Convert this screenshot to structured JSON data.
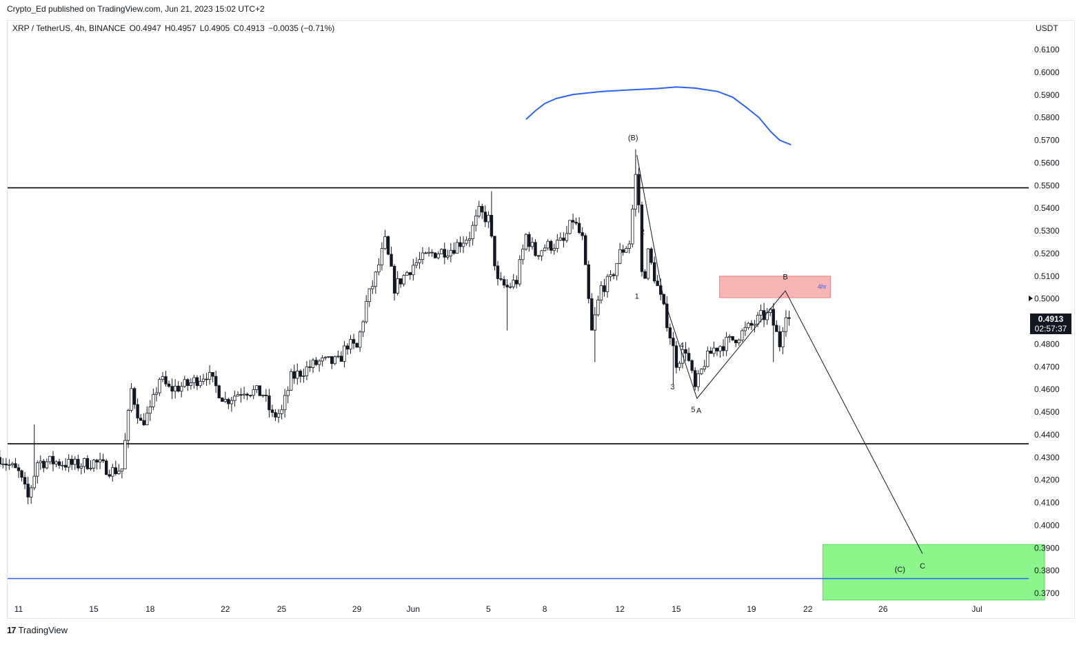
{
  "header": {
    "published_text": "Crypto_Ed published on TradingView.com, Jun 21, 2023 15:02 UTC+2"
  },
  "legend": {
    "symbol": "XRP / TetherUS, 4h, BINANCE",
    "open": "O0.4947",
    "high": "H0.4957",
    "low": "L0.4905",
    "close": "C0.4913",
    "change": "−0.0035 (−0.71%)"
  },
  "footer": {
    "brand": "TradingView",
    "logo_icon": "tradingview-logo-icon"
  },
  "price_badge": {
    "price": "0.4913",
    "countdown": "02:57:37"
  },
  "chart_data": {
    "type": "candlestick",
    "symbol": "XRP / TetherUS",
    "timeframe": "4h",
    "y_axis_unit": "USDT",
    "ylim": [
      0.366,
      0.619
    ],
    "y_ticks": [
      "0.6100",
      "0.6000",
      "0.5900",
      "0.5800",
      "0.5700",
      "0.5600",
      "0.5500",
      "0.5400",
      "0.5300",
      "0.5200",
      "0.5100",
      "0.5000",
      "0.4900",
      "0.4800",
      "0.4700",
      "0.4600",
      "0.4500",
      "0.4400",
      "0.4300",
      "0.4200",
      "0.4100",
      "0.4000",
      "0.3900",
      "0.3800",
      "0.3700"
    ],
    "x_ticks": [
      {
        "label": "11",
        "day": 11
      },
      {
        "label": "15",
        "day": 15
      },
      {
        "label": "18",
        "day": 18
      },
      {
        "label": "22",
        "day": 22
      },
      {
        "label": "25",
        "day": 25
      },
      {
        "label": "29",
        "day": 29
      },
      {
        "label": "Jun",
        "day": 32
      },
      {
        "label": "5",
        "day": 36
      },
      {
        "label": "8",
        "day": 39
      },
      {
        "label": "12",
        "day": 43
      },
      {
        "label": "15",
        "day": 46
      },
      {
        "label": "19",
        "day": 50
      },
      {
        "label": "22",
        "day": 53
      },
      {
        "label": "26",
        "day": 57
      },
      {
        "label": "Jul",
        "day": 62
      }
    ],
    "colors": {
      "candle": "#131722",
      "blue_line": "#2962ff",
      "level_line": "#000000",
      "red_zone": "#f7b5b5",
      "green_zone": "#8cf58c"
    },
    "horizontal_levels": [
      {
        "price": 0.549,
        "color": "#000000"
      },
      {
        "price": 0.436,
        "color": "#000000"
      },
      {
        "price": 0.3765,
        "color": "#2962ff"
      }
    ],
    "zones": [
      {
        "from_day": 48.3,
        "to_day": 54.2,
        "top": 0.51,
        "bottom": 0.5005,
        "color": "#f7b5b5",
        "label": "4hr"
      },
      {
        "from_day": 53.8,
        "to_day": 65.6,
        "top": 0.3915,
        "bottom": 0.367,
        "color": "#8cf58c",
        "label": ""
      }
    ],
    "wave_path": [
      {
        "day": 43.9,
        "price": 0.5635
      },
      {
        "day": 45.3,
        "price": 0.501
      },
      {
        "day": 47.1,
        "price": 0.456
      },
      {
        "day": 51.8,
        "price": 0.5035
      },
      {
        "day": 59.1,
        "price": 0.3875
      }
    ],
    "wave_labels": [
      {
        "text": "(B)",
        "day": 43.7,
        "price": 0.57
      },
      {
        "text": "1",
        "day": 43.9,
        "price": 0.5
      },
      {
        "text": "2",
        "day": 44.2,
        "price": 0.5285
      },
      {
        "text": "3",
        "day": 45.8,
        "price": 0.46
      },
      {
        "text": "4",
        "day": 46.3,
        "price": 0.4785
      },
      {
        "text": "5",
        "day": 46.9,
        "price": 0.45
      },
      {
        "text": "A",
        "day": 47.2,
        "price": 0.4495
      },
      {
        "text": "B",
        "day": 51.8,
        "price": 0.5085
      },
      {
        "text": "(C)",
        "day": 57.9,
        "price": 0.3795
      },
      {
        "text": "C",
        "day": 59.1,
        "price": 0.381
      }
    ],
    "curve": [
      {
        "day": 38.0,
        "price": 0.5792
      },
      {
        "day": 38.5,
        "price": 0.583
      },
      {
        "day": 39.0,
        "price": 0.5862
      },
      {
        "day": 39.6,
        "price": 0.5884
      },
      {
        "day": 40.5,
        "price": 0.5902
      },
      {
        "day": 42.0,
        "price": 0.5915
      },
      {
        "day": 43.5,
        "price": 0.5922
      },
      {
        "day": 45.0,
        "price": 0.5928
      },
      {
        "day": 46.0,
        "price": 0.5935
      },
      {
        "day": 47.0,
        "price": 0.593
      },
      {
        "day": 48.2,
        "price": 0.5915
      },
      {
        "day": 49.0,
        "price": 0.589
      },
      {
        "day": 49.8,
        "price": 0.584
      },
      {
        "day": 50.4,
        "price": 0.58
      },
      {
        "day": 51.0,
        "price": 0.574
      },
      {
        "day": 51.5,
        "price": 0.57
      },
      {
        "day": 52.1,
        "price": 0.568
      }
    ],
    "anchors": [
      {
        "day": 10.0,
        "price": 0.43
      },
      {
        "day": 11.0,
        "price": 0.423
      },
      {
        "day": 11.5,
        "price": 0.412
      },
      {
        "day": 12.0,
        "price": 0.428
      },
      {
        "day": 13.0,
        "price": 0.428
      },
      {
        "day": 14.0,
        "price": 0.4265
      },
      {
        "day": 15.0,
        "price": 0.428
      },
      {
        "day": 16.0,
        "price": 0.424
      },
      {
        "day": 16.5,
        "price": 0.425
      },
      {
        "day": 17.0,
        "price": 0.46
      },
      {
        "day": 17.5,
        "price": 0.445
      },
      {
        "day": 18.0,
        "price": 0.45
      },
      {
        "day": 18.5,
        "price": 0.465
      },
      {
        "day": 19.0,
        "price": 0.46
      },
      {
        "day": 20.0,
        "price": 0.462
      },
      {
        "day": 21.0,
        "price": 0.467
      },
      {
        "day": 22.0,
        "price": 0.455
      },
      {
        "day": 23.0,
        "price": 0.46
      },
      {
        "day": 24.0,
        "price": 0.458
      },
      {
        "day": 24.5,
        "price": 0.448
      },
      {
        "day": 25.0,
        "price": 0.45
      },
      {
        "day": 25.5,
        "price": 0.465
      },
      {
        "day": 26.5,
        "price": 0.47
      },
      {
        "day": 27.0,
        "price": 0.472
      },
      {
        "day": 28.0,
        "price": 0.472
      },
      {
        "day": 28.5,
        "price": 0.48
      },
      {
        "day": 29.0,
        "price": 0.478
      },
      {
        "day": 29.5,
        "price": 0.498
      },
      {
        "day": 30.0,
        "price": 0.51
      },
      {
        "day": 30.5,
        "price": 0.525
      },
      {
        "day": 31.0,
        "price": 0.505
      },
      {
        "day": 32.0,
        "price": 0.515
      },
      {
        "day": 33.0,
        "price": 0.52
      },
      {
        "day": 34.0,
        "price": 0.522
      },
      {
        "day": 35.0,
        "price": 0.528
      },
      {
        "day": 35.5,
        "price": 0.538
      },
      {
        "day": 36.0,
        "price": 0.535
      },
      {
        "day": 36.5,
        "price": 0.507
      },
      {
        "day": 37.0,
        "price": 0.505
      },
      {
        "day": 37.5,
        "price": 0.508
      },
      {
        "day": 38.0,
        "price": 0.528
      },
      {
        "day": 38.5,
        "price": 0.52
      },
      {
        "day": 39.0,
        "price": 0.523
      },
      {
        "day": 40.0,
        "price": 0.525
      },
      {
        "day": 40.5,
        "price": 0.535
      },
      {
        "day": 41.0,
        "price": 0.526
      },
      {
        "day": 41.5,
        "price": 0.485
      },
      {
        "day": 42.0,
        "price": 0.505
      },
      {
        "day": 42.5,
        "price": 0.508
      },
      {
        "day": 43.0,
        "price": 0.52
      },
      {
        "day": 43.5,
        "price": 0.525
      },
      {
        "day": 43.9,
        "price": 0.56
      },
      {
        "day": 44.2,
        "price": 0.505
      },
      {
        "day": 44.5,
        "price": 0.52
      },
      {
        "day": 45.0,
        "price": 0.505
      },
      {
        "day": 45.5,
        "price": 0.49
      },
      {
        "day": 46.0,
        "price": 0.472
      },
      {
        "day": 46.5,
        "price": 0.478
      },
      {
        "day": 47.0,
        "price": 0.46
      },
      {
        "day": 47.5,
        "price": 0.472
      },
      {
        "day": 48.0,
        "price": 0.478
      },
      {
        "day": 49.0,
        "price": 0.482
      },
      {
        "day": 50.0,
        "price": 0.488
      },
      {
        "day": 50.5,
        "price": 0.492
      },
      {
        "day": 51.0,
        "price": 0.493
      },
      {
        "day": 51.5,
        "price": 0.48
      },
      {
        "day": 51.8,
        "price": 0.495
      },
      {
        "day": 52.1,
        "price": 0.4913
      }
    ]
  }
}
